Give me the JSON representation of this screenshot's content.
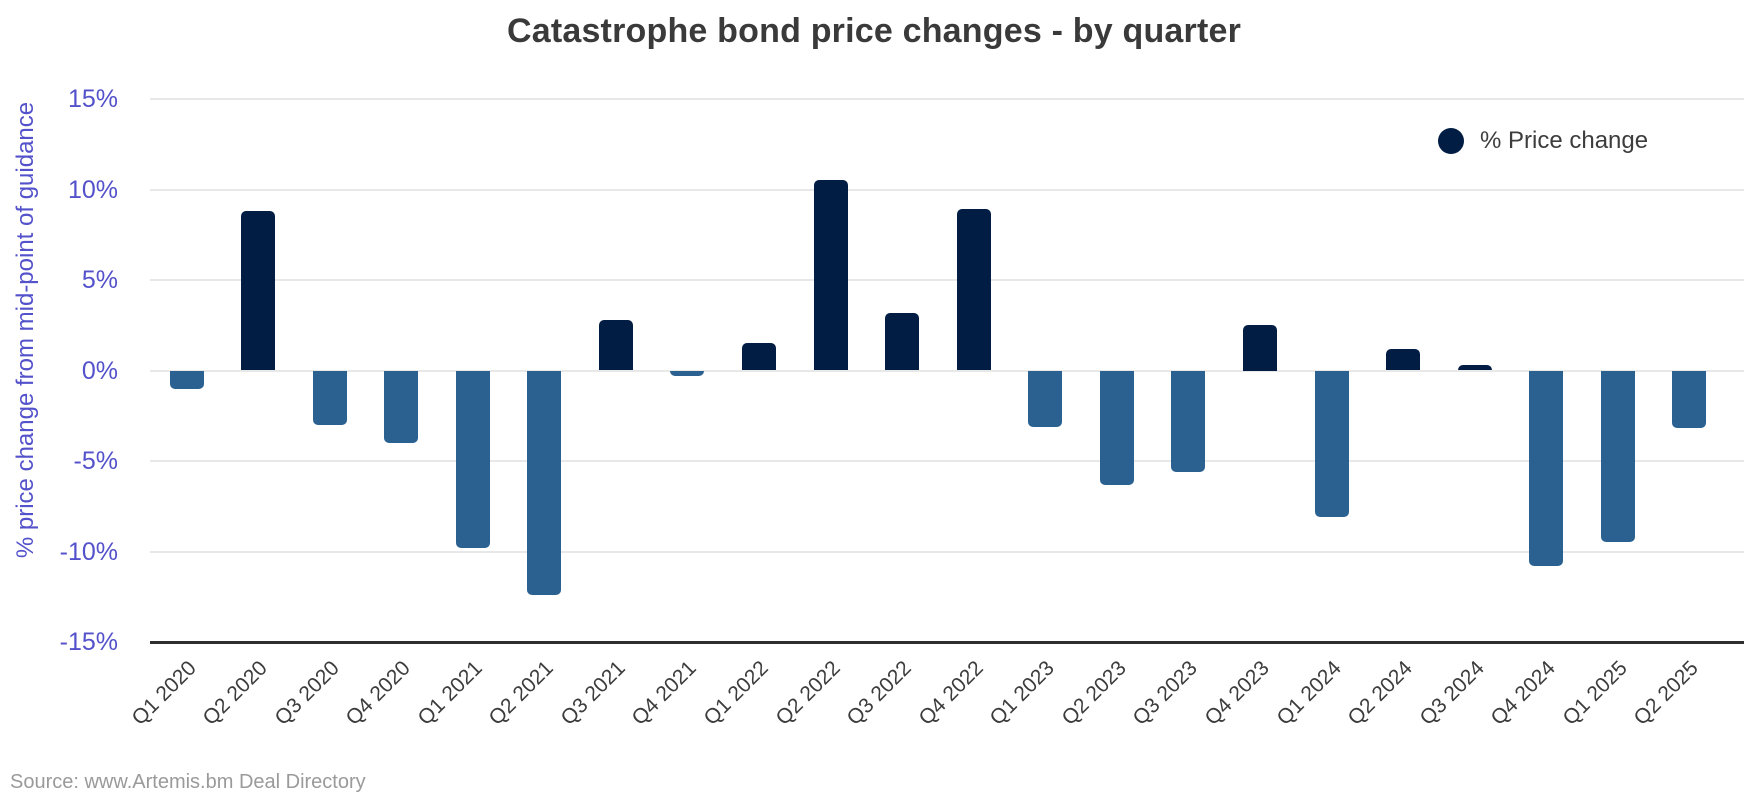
{
  "title": "Catastrophe bond price changes - by quarter",
  "legend": {
    "label": "% Price change"
  },
  "source": "Source: www.Artemis.bm Deal Directory",
  "colors": {
    "positive_bar": "#021d43",
    "negative_bar": "#2a6191",
    "axis_text": "#5352cb",
    "gridline": "#e8e8e8",
    "axis_line": "#2e2e2e"
  },
  "chart_data": {
    "type": "bar",
    "title": "Catastrophe bond price changes - by quarter",
    "xlabel": "",
    "ylabel": "% price change from mid-point of guidance",
    "categories": [
      "Q1 2020",
      "Q2 2020",
      "Q3 2020",
      "Q4 2020",
      "Q1 2021",
      "Q2 2021",
      "Q3 2021",
      "Q4 2021",
      "Q1 2022",
      "Q2 2022",
      "Q3 2022",
      "Q4 2022",
      "Q1 2023",
      "Q2 2023",
      "Q3 2023",
      "Q4 2023",
      "Q1 2024",
      "Q2 2024",
      "Q3 2024",
      "Q4 2024",
      "Q1 2025",
      "Q2 2025"
    ],
    "values": [
      -1.0,
      8.8,
      -3.0,
      -4.0,
      -9.8,
      -12.4,
      2.8,
      -0.3,
      1.5,
      10.5,
      3.2,
      8.9,
      -3.1,
      -6.3,
      -5.6,
      2.5,
      -8.1,
      1.2,
      0.3,
      -10.8,
      -9.5,
      -3.2
    ],
    "ylim": [
      -15,
      15
    ],
    "yticks": [
      15,
      10,
      5,
      0,
      -5,
      -10,
      -15
    ],
    "ytick_labels": [
      "15%",
      "10%",
      "5%",
      "0%",
      "-5%",
      "-10%",
      "-15%"
    ],
    "grid": true,
    "legend_entries": [
      "% Price change"
    ],
    "legend_position": "top-right"
  }
}
